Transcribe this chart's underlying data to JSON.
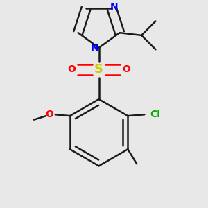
{
  "bg_color": "#e8e8e8",
  "bond_color": "#1a1a1a",
  "atom_colors": {
    "N": "#0000ff",
    "O": "#ff0000",
    "S": "#cccc00",
    "Cl": "#00aa00",
    "C": "#1a1a1a"
  },
  "line_width": 1.8,
  "font_size": 10
}
